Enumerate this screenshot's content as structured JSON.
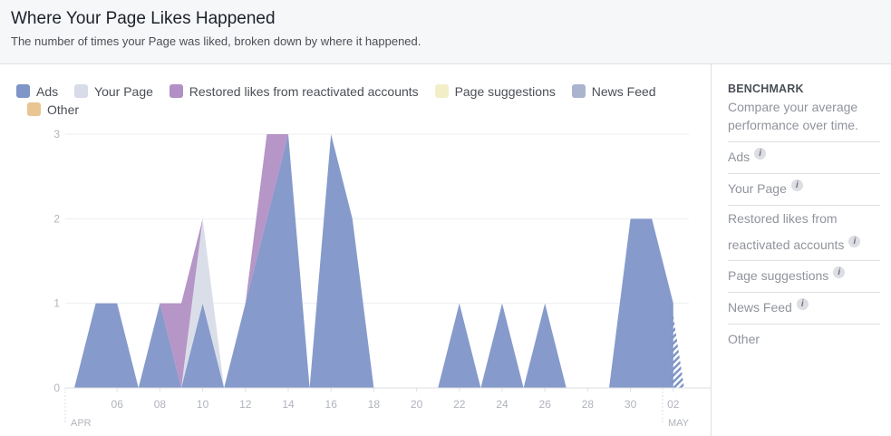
{
  "header": {
    "title": "Where Your Page Likes Happened",
    "subtitle": "The number of times your Page was liked, broken down by where it happened."
  },
  "legend": [
    {
      "label": "Ads",
      "color": "#7f95c8"
    },
    {
      "label": "Your Page",
      "color": "#d8dce8"
    },
    {
      "label": "Restored likes from reactivated accounts",
      "color": "#b28fc4"
    },
    {
      "label": "Page suggestions",
      "color": "#f2efc8"
    },
    {
      "label": "News Feed",
      "color": "#aab4cf"
    },
    {
      "label": "Other",
      "color": "#e8c592"
    }
  ],
  "benchmark": {
    "heading": "BENCHMARK",
    "description": "Compare your average performance over time.",
    "items": [
      {
        "label": "Ads",
        "info_icon": true
      },
      {
        "label": "Your Page",
        "info_icon": true
      },
      {
        "label": "Restored likes from reactivated accounts",
        "info_icon": true
      },
      {
        "label": "Page suggestions",
        "info_icon": true
      },
      {
        "label": "News Feed",
        "info_icon": true
      },
      {
        "label": "Other",
        "info_icon": false
      }
    ]
  },
  "chart_data": {
    "type": "area",
    "stacked": true,
    "x_start": "2017-04-04",
    "x_end": "2017-05-02",
    "x_ticks": [
      "06",
      "08",
      "10",
      "12",
      "14",
      "16",
      "18",
      "20",
      "22",
      "24",
      "26",
      "28",
      "30",
      "02"
    ],
    "month_labels": [
      "APR",
      "MAY"
    ],
    "y_ticks": [
      0,
      1,
      2,
      3
    ],
    "ylim": [
      0,
      3
    ],
    "grid": true,
    "dates": [
      "04-04",
      "04-05",
      "04-06",
      "04-07",
      "04-08",
      "04-09",
      "04-10",
      "04-11",
      "04-12",
      "04-13",
      "04-14",
      "04-15",
      "04-16",
      "04-17",
      "04-18",
      "04-19",
      "04-20",
      "04-21",
      "04-22",
      "04-23",
      "04-24",
      "04-25",
      "04-26",
      "04-27",
      "04-28",
      "04-29",
      "04-30",
      "05-01",
      "05-02"
    ],
    "series": [
      {
        "name": "Ads",
        "color": "#7f95c8",
        "values": [
          0,
          1,
          1,
          0,
          1,
          0,
          1,
          0,
          1,
          2,
          3,
          0,
          3,
          2,
          0,
          0,
          0,
          0,
          1,
          0,
          1,
          0,
          1,
          0,
          0,
          0,
          2,
          2,
          1
        ]
      },
      {
        "name": "Your Page",
        "color": "#d8dce8",
        "values": [
          0,
          0,
          0,
          0,
          0,
          0,
          1,
          0,
          0,
          0,
          0,
          0,
          0,
          0,
          0,
          0,
          0,
          0,
          0,
          0,
          0,
          0,
          0,
          0,
          0,
          0,
          0,
          0,
          0
        ]
      },
      {
        "name": "Restored likes from reactivated accounts",
        "color": "#b28fc4",
        "values": [
          0,
          0,
          0,
          0,
          0,
          1,
          0,
          0,
          0,
          1,
          0,
          0,
          0,
          0,
          0,
          0,
          0,
          0,
          0,
          0,
          0,
          0,
          0,
          0,
          0,
          0,
          0,
          0,
          0
        ]
      }
    ]
  }
}
